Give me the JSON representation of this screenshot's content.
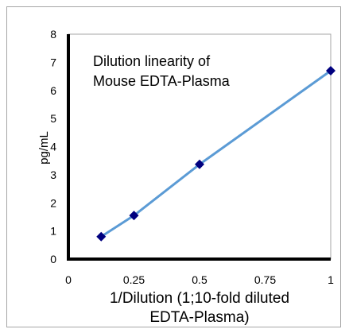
{
  "chart_data": {
    "type": "line",
    "title": "",
    "annotation_lines": [
      "Dilution linearity of",
      "Mouse EDTA-Plasma"
    ],
    "xlabel_lines": [
      "1/Dilution (1;10-fold diluted",
      "EDTA-Plasma)"
    ],
    "ylabel": "pg/mL",
    "xlim": [
      0,
      1
    ],
    "ylim": [
      0,
      8
    ],
    "x_ticks": [
      0,
      0.25,
      0.5,
      0.75,
      1
    ],
    "x_tick_labels": [
      "0",
      "0.25",
      "0.5",
      "0.75",
      "1"
    ],
    "y_ticks": [
      0,
      1,
      2,
      3,
      4,
      5,
      6,
      7,
      8
    ],
    "y_tick_labels": [
      "0",
      "1",
      "2",
      "3",
      "4",
      "5",
      "6",
      "7",
      "8"
    ],
    "grid": false,
    "legend": "none",
    "series": [
      {
        "x": [
          0.125,
          0.25,
          0.5,
          1
        ],
        "y": [
          0.8,
          1.55,
          3.37,
          6.7
        ],
        "line_color": "#5b9bd5",
        "marker_color": "#00007f",
        "marker": "diamond"
      }
    ]
  }
}
